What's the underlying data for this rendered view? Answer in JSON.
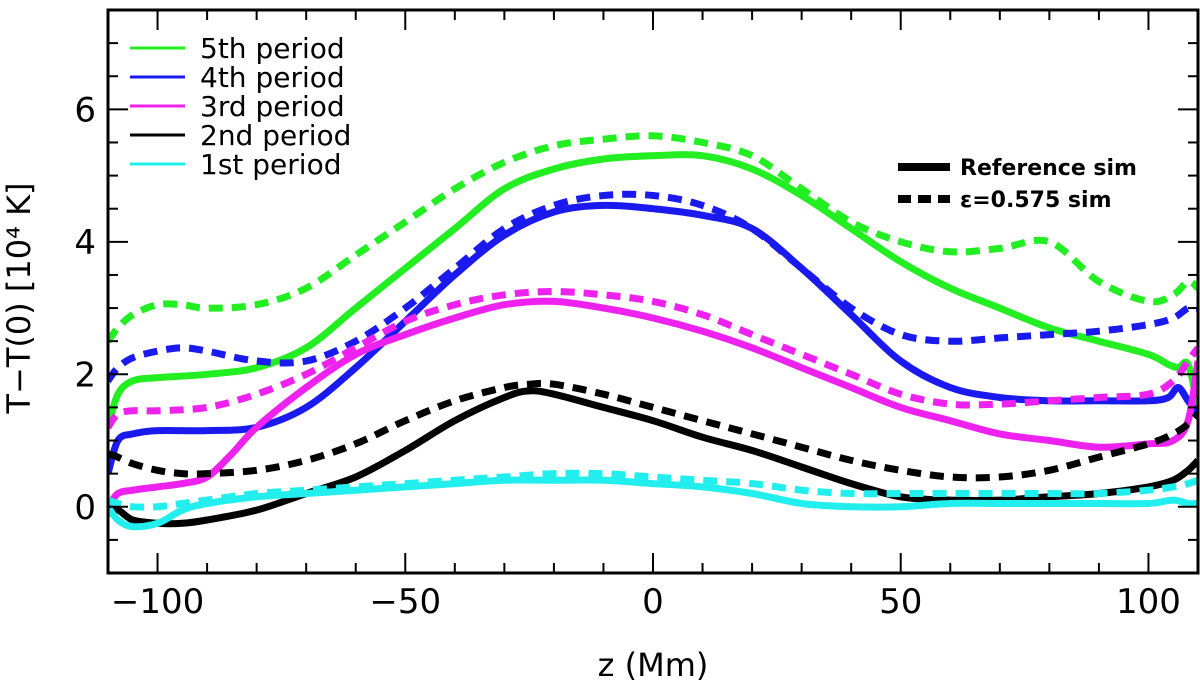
{
  "chart_data": {
    "type": "line",
    "xlabel": "z (Mm)",
    "ylabel": "T−T(0)  [10⁴ K]",
    "xlim": [
      -110,
      110
    ],
    "ylim": [
      -1,
      7.5
    ],
    "x_ticks": [
      -100,
      -50,
      0,
      50,
      100
    ],
    "y_ticks": [
      0,
      2,
      4,
      6
    ],
    "x_tick_labels": [
      "−100",
      "−50",
      "0",
      "50",
      "100"
    ],
    "y_tick_labels": [
      "0",
      "2",
      "4",
      "6"
    ],
    "legend": [
      {
        "label": "5th period",
        "color": "#22ee22"
      },
      {
        "label": "4th period",
        "color": "#1a1aee"
      },
      {
        "label": "3rd period",
        "color": "#ee22ee"
      },
      {
        "label": "2nd period",
        "color": "#000000"
      },
      {
        "label": "1st period",
        "color": "#22eeee"
      }
    ],
    "style_legend": [
      {
        "label": "Reference sim",
        "dash": "solid"
      },
      {
        "label": "ε=0.575 sim",
        "dash": "dashed"
      }
    ],
    "series": [
      {
        "name": "5th period",
        "style": "Reference sim",
        "color": "#22ee22",
        "x": [
          -110,
          -108,
          -105,
          -100,
          -90,
          -80,
          -70,
          -60,
          -50,
          -40,
          -30,
          -20,
          -10,
          0,
          10,
          20,
          30,
          40,
          50,
          60,
          70,
          80,
          90,
          100,
          104,
          106,
          108,
          110
        ],
        "y": [
          1.2,
          1.7,
          1.9,
          1.95,
          2.0,
          2.1,
          2.4,
          3.0,
          3.6,
          4.2,
          4.8,
          5.1,
          5.25,
          5.3,
          5.3,
          5.1,
          4.7,
          4.2,
          3.7,
          3.3,
          3.0,
          2.7,
          2.5,
          2.3,
          2.15,
          2.1,
          2.15,
          1.5
        ]
      },
      {
        "name": "5th period",
        "style": "ε=0.575 sim",
        "color": "#22ee22",
        "x": [
          -110,
          -108,
          -105,
          -100,
          -95,
          -90,
          -80,
          -70,
          -60,
          -50,
          -40,
          -30,
          -20,
          -10,
          0,
          10,
          20,
          30,
          40,
          50,
          60,
          70,
          80,
          90,
          100,
          105,
          108,
          110
        ],
        "y": [
          2.5,
          2.7,
          2.9,
          3.05,
          3.05,
          3.0,
          3.05,
          3.3,
          3.8,
          4.3,
          4.8,
          5.2,
          5.45,
          5.55,
          5.6,
          5.5,
          5.3,
          4.8,
          4.3,
          4.0,
          3.85,
          3.9,
          4.0,
          3.4,
          3.1,
          3.2,
          3.4,
          3.3
        ]
      },
      {
        "name": "4th period",
        "style": "Reference sim",
        "color": "#1a1aee",
        "x": [
          -110,
          -108,
          -105,
          -100,
          -90,
          -80,
          -70,
          -60,
          -50,
          -40,
          -30,
          -20,
          -10,
          0,
          10,
          20,
          30,
          40,
          50,
          60,
          70,
          80,
          90,
          100,
          104,
          106,
          108,
          110
        ],
        "y": [
          0.5,
          1.0,
          1.1,
          1.15,
          1.15,
          1.2,
          1.5,
          2.1,
          2.8,
          3.5,
          4.1,
          4.45,
          4.55,
          4.5,
          4.4,
          4.2,
          3.6,
          2.9,
          2.2,
          1.8,
          1.65,
          1.6,
          1.6,
          1.6,
          1.65,
          1.8,
          1.6,
          1.4
        ]
      },
      {
        "name": "4th period",
        "style": "ε=0.575 sim",
        "color": "#1a1aee",
        "x": [
          -110,
          -108,
          -105,
          -100,
          -95,
          -90,
          -80,
          -70,
          -60,
          -50,
          -40,
          -30,
          -20,
          -10,
          0,
          10,
          20,
          30,
          40,
          50,
          60,
          70,
          80,
          90,
          100,
          105,
          108,
          110
        ],
        "y": [
          1.9,
          2.1,
          2.25,
          2.35,
          2.4,
          2.35,
          2.2,
          2.2,
          2.5,
          3.0,
          3.6,
          4.2,
          4.55,
          4.7,
          4.7,
          4.55,
          4.2,
          3.6,
          3.0,
          2.6,
          2.5,
          2.55,
          2.6,
          2.65,
          2.75,
          2.85,
          3.0,
          3.0
        ]
      },
      {
        "name": "3rd period",
        "style": "Reference sim",
        "color": "#ee22ee",
        "x": [
          -110,
          -108,
          -105,
          -100,
          -95,
          -90,
          -85,
          -80,
          -70,
          -60,
          -50,
          -40,
          -30,
          -20,
          -10,
          0,
          10,
          20,
          30,
          40,
          50,
          60,
          70,
          80,
          90,
          100,
          105,
          108,
          110
        ],
        "y": [
          0.0,
          0.2,
          0.25,
          0.3,
          0.35,
          0.45,
          0.8,
          1.2,
          1.8,
          2.3,
          2.6,
          2.85,
          3.05,
          3.1,
          3.0,
          2.85,
          2.65,
          2.4,
          2.1,
          1.8,
          1.5,
          1.3,
          1.1,
          1.0,
          0.9,
          0.95,
          1.0,
          1.3,
          2.2
        ]
      },
      {
        "name": "3rd period",
        "style": "ε=0.575 sim",
        "color": "#ee22ee",
        "x": [
          -110,
          -108,
          -105,
          -100,
          -90,
          -80,
          -70,
          -60,
          -50,
          -40,
          -30,
          -20,
          -10,
          0,
          10,
          20,
          30,
          40,
          50,
          60,
          70,
          80,
          90,
          100,
          105,
          108,
          110
        ],
        "y": [
          1.2,
          1.4,
          1.45,
          1.45,
          1.5,
          1.7,
          2.0,
          2.4,
          2.8,
          3.05,
          3.2,
          3.25,
          3.2,
          3.1,
          2.9,
          2.6,
          2.3,
          2.0,
          1.7,
          1.55,
          1.55,
          1.6,
          1.65,
          1.7,
          1.9,
          2.2,
          2.4
        ]
      },
      {
        "name": "2nd period",
        "style": "Reference sim",
        "color": "#000000",
        "x": [
          -110,
          -108,
          -105,
          -100,
          -95,
          -90,
          -80,
          -70,
          -60,
          -50,
          -40,
          -30,
          -25,
          -20,
          -10,
          0,
          10,
          20,
          30,
          40,
          50,
          60,
          70,
          80,
          90,
          100,
          105,
          108,
          110
        ],
        "y": [
          -0.1,
          -0.05,
          -0.2,
          -0.25,
          -0.25,
          -0.2,
          -0.05,
          0.2,
          0.45,
          0.85,
          1.3,
          1.65,
          1.75,
          1.7,
          1.5,
          1.3,
          1.05,
          0.85,
          0.6,
          0.35,
          0.15,
          0.1,
          0.1,
          0.15,
          0.2,
          0.3,
          0.4,
          0.55,
          0.7
        ]
      },
      {
        "name": "2nd period",
        "style": "ε=0.575 sim",
        "color": "#000000",
        "x": [
          -110,
          -108,
          -105,
          -100,
          -95,
          -90,
          -80,
          -70,
          -60,
          -50,
          -40,
          -30,
          -25,
          -20,
          -10,
          0,
          10,
          20,
          30,
          40,
          50,
          60,
          70,
          80,
          90,
          100,
          105,
          108,
          110
        ],
        "y": [
          0.8,
          0.75,
          0.65,
          0.55,
          0.5,
          0.5,
          0.55,
          0.7,
          0.95,
          1.3,
          1.6,
          1.8,
          1.85,
          1.85,
          1.7,
          1.5,
          1.3,
          1.1,
          0.9,
          0.7,
          0.55,
          0.45,
          0.45,
          0.55,
          0.75,
          0.95,
          1.1,
          1.25,
          1.4
        ]
      },
      {
        "name": "1st period",
        "style": "Reference sim",
        "color": "#22eeee",
        "x": [
          -110,
          -108,
          -105,
          -100,
          -95,
          -90,
          -80,
          -70,
          -60,
          -50,
          -40,
          -30,
          -20,
          -10,
          0,
          10,
          20,
          30,
          40,
          50,
          60,
          70,
          80,
          90,
          100,
          105,
          108,
          110
        ],
        "y": [
          0.0,
          -0.2,
          -0.3,
          -0.25,
          -0.05,
          0.05,
          0.15,
          0.2,
          0.25,
          0.3,
          0.35,
          0.4,
          0.4,
          0.4,
          0.35,
          0.3,
          0.2,
          0.05,
          0.0,
          0.0,
          0.05,
          0.05,
          0.05,
          0.05,
          0.05,
          0.1,
          0.05,
          0.05
        ]
      },
      {
        "name": "1st period",
        "style": "ε=0.575 sim",
        "color": "#22eeee",
        "x": [
          -110,
          -108,
          -105,
          -100,
          -95,
          -90,
          -80,
          -70,
          -60,
          -50,
          -40,
          -30,
          -20,
          -10,
          0,
          10,
          20,
          30,
          40,
          50,
          60,
          70,
          80,
          90,
          100,
          105,
          108,
          110
        ],
        "y": [
          0.1,
          0.05,
          0.0,
          0.0,
          0.05,
          0.1,
          0.2,
          0.25,
          0.3,
          0.35,
          0.4,
          0.45,
          0.5,
          0.5,
          0.45,
          0.4,
          0.35,
          0.25,
          0.2,
          0.2,
          0.2,
          0.2,
          0.2,
          0.2,
          0.25,
          0.3,
          0.35,
          0.4
        ]
      }
    ]
  }
}
